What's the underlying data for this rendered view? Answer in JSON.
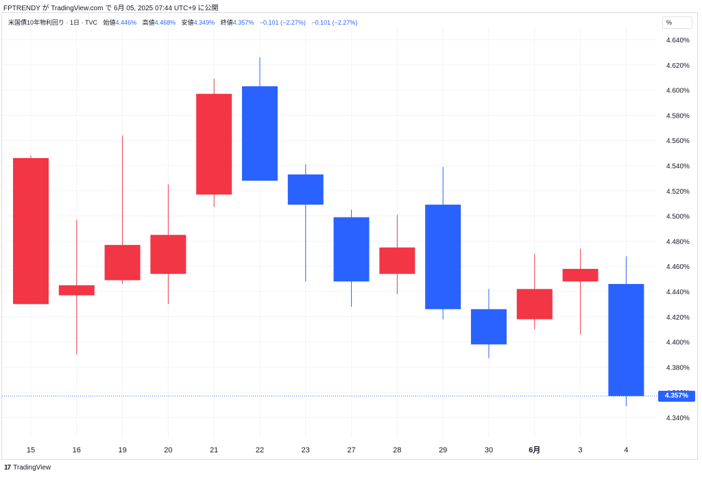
{
  "header": {
    "publish_line": "FPTRENDY が TradingView.com で 6月 05, 2025 07:44 UTC+9 に公開"
  },
  "legend": {
    "symbol": "米国債10年物利回り · 1日 · TVC",
    "open_label": "始値",
    "open": "4.446%",
    "high_label": "高値",
    "high": "4.468%",
    "low_label": "安値",
    "low": "4.349%",
    "close_label": "終値",
    "close": "4.357%",
    "change1": "−0.101 (−2.27%)",
    "change2": "−0.101 (−2.27%)"
  },
  "unit_label": "%",
  "last_price_label": "4.357%",
  "footer": {
    "logo": "17",
    "brand": "TradingView"
  },
  "colors": {
    "up": "#f23645",
    "down": "#2962ff",
    "grid": "#f0f3fa",
    "axis_text": "#131722"
  },
  "chart_data": {
    "type": "candlestick",
    "y_unit": "%",
    "ylim": [
      4.326,
      4.652
    ],
    "y_ticks": [
      "4.340%",
      "4.360%",
      "4.380%",
      "4.400%",
      "4.420%",
      "4.440%",
      "4.460%",
      "4.480%",
      "4.500%",
      "4.520%",
      "4.540%",
      "4.560%",
      "4.580%",
      "4.600%",
      "4.620%",
      "4.640%"
    ],
    "y_tick_values": [
      4.34,
      4.36,
      4.38,
      4.4,
      4.42,
      4.44,
      4.46,
      4.48,
      4.5,
      4.52,
      4.54,
      4.56,
      4.58,
      4.6,
      4.62,
      4.64
    ],
    "x_labels": [
      "15",
      "16",
      "19",
      "20",
      "21",
      "22",
      "23",
      "27",
      "28",
      "29",
      "30",
      "6月",
      "3",
      "4"
    ],
    "grid": true,
    "last_close": 4.357,
    "candles": [
      {
        "label": "15",
        "open": 4.43,
        "high": 4.548,
        "low": 4.43,
        "close": 4.546
      },
      {
        "label": "16",
        "open": 4.437,
        "high": 4.497,
        "low": 4.39,
        "close": 4.445
      },
      {
        "label": "19",
        "open": 4.449,
        "high": 4.564,
        "low": 4.446,
        "close": 4.477
      },
      {
        "label": "20",
        "open": 4.454,
        "high": 4.525,
        "low": 4.43,
        "close": 4.485
      },
      {
        "label": "21",
        "open": 4.517,
        "high": 4.609,
        "low": 4.507,
        "close": 4.597
      },
      {
        "label": "22",
        "open": 4.603,
        "high": 4.626,
        "low": 4.528,
        "close": 4.528
      },
      {
        "label": "23",
        "open": 4.533,
        "high": 4.541,
        "low": 4.448,
        "close": 4.509
      },
      {
        "label": "27",
        "open": 4.499,
        "high": 4.505,
        "low": 4.428,
        "close": 4.448
      },
      {
        "label": "28",
        "open": 4.454,
        "high": 4.501,
        "low": 4.438,
        "close": 4.475
      },
      {
        "label": "29",
        "open": 4.509,
        "high": 4.539,
        "low": 4.418,
        "close": 4.426
      },
      {
        "label": "30",
        "open": 4.426,
        "high": 4.442,
        "low": 4.387,
        "close": 4.398
      },
      {
        "label": "6月",
        "open": 4.418,
        "high": 4.47,
        "low": 4.41,
        "close": 4.442
      },
      {
        "label": "3",
        "open": 4.448,
        "high": 4.474,
        "low": 4.406,
        "close": 4.458
      },
      {
        "label": "4",
        "open": 4.446,
        "high": 4.468,
        "low": 4.349,
        "close": 4.357
      }
    ]
  }
}
